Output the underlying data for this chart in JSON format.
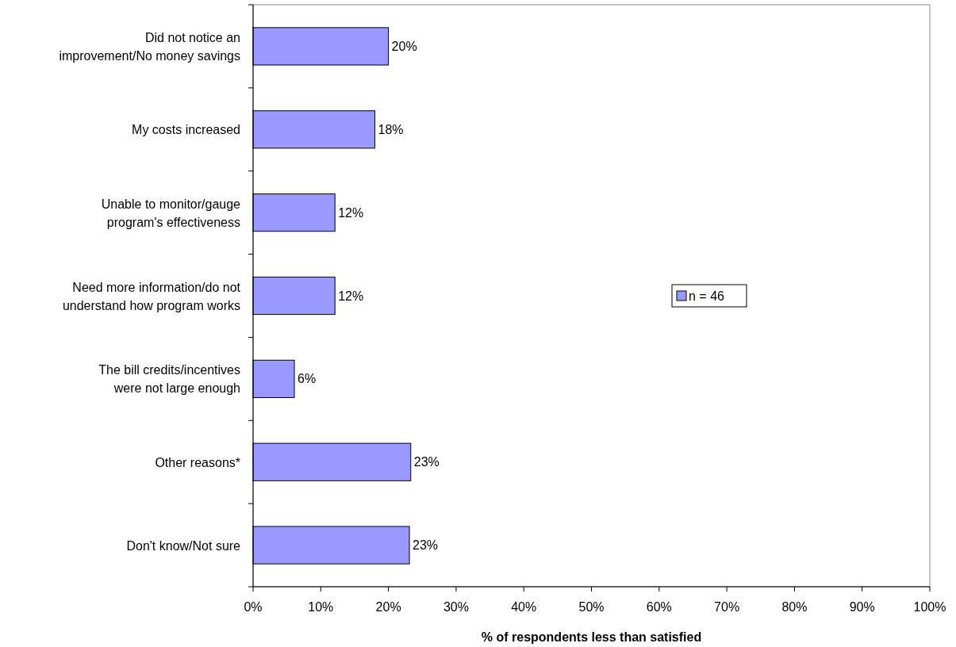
{
  "chart_data": {
    "type": "bar",
    "orientation": "horizontal",
    "xlabel": "% of respondents less than satisfied",
    "categories": [
      "Did not notice an improvement/No money savings",
      "My costs increased",
      "Unable to monitor/gauge program's effectiveness",
      "Need more information/do not understand how program works",
      "The bill credits/incentives were not large enough",
      "Other reasons*",
      "Don't know/Not sure"
    ],
    "series": [
      {
        "name": "n = 46",
        "color": "#9999ff",
        "values": [
          20,
          18,
          12.1,
          12.1,
          6.1,
          23.3,
          23.1
        ],
        "value_labels": [
          "20%",
          "18%",
          "12%",
          "12%",
          "6%",
          "23%",
          "23%"
        ]
      }
    ],
    "xlim": [
      0,
      100
    ],
    "xticks": [
      {
        "value": 0,
        "label": "0%"
      },
      {
        "value": 10,
        "label": "10%"
      },
      {
        "value": 20,
        "label": "20%"
      },
      {
        "value": 30,
        "label": "30%"
      },
      {
        "value": 40,
        "label": "40%"
      },
      {
        "value": 50,
        "label": "50%"
      },
      {
        "value": 60,
        "label": "60%"
      },
      {
        "value": 70,
        "label": "70%"
      },
      {
        "value": 80,
        "label": "80%"
      },
      {
        "value": 90,
        "label": "90%"
      },
      {
        "value": 100,
        "label": "100%"
      }
    ],
    "grid": false,
    "legend": "right"
  }
}
